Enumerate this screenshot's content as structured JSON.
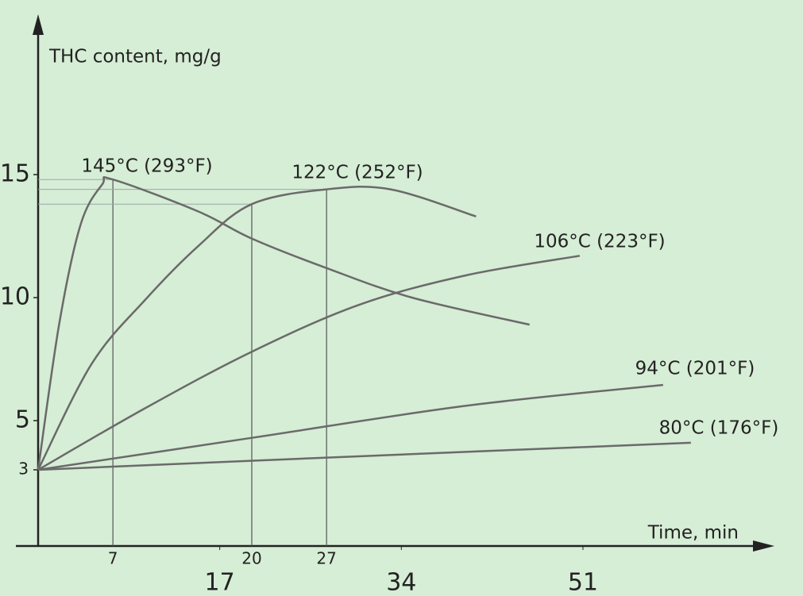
{
  "chart_data": {
    "type": "line",
    "y_label": "THC content, mg/g",
    "x_label": "Time, min",
    "xlim": [
      0,
      68
    ],
    "ylim": [
      0,
      21
    ],
    "yticks": [
      3,
      5,
      10,
      15
    ],
    "xticks": [
      7,
      20,
      27
    ],
    "xticks_secondary": [
      17,
      34,
      51
    ],
    "series": [
      {
        "name": "145°C (293°F)",
        "color": "#6a6a6a",
        "x": [
          0,
          2,
          4,
          6,
          7,
          15,
          20,
          27,
          35,
          46
        ],
        "values": [
          3,
          9,
          13,
          14.6,
          14.8,
          13.5,
          12.4,
          11.2,
          10.0,
          8.9
        ]
      },
      {
        "name": "122°C (252°F)",
        "color": "#6a6a6a",
        "x": [
          0,
          5,
          10,
          15,
          20,
          27,
          33,
          41
        ],
        "values": [
          3,
          7.3,
          9.9,
          12.1,
          13.8,
          14.4,
          14.4,
          13.3
        ]
      },
      {
        "name": "106°C (223°F)",
        "color": "#6a6a6a",
        "x": [
          0,
          10,
          20,
          30,
          40,
          50.7
        ],
        "values": [
          3,
          5.5,
          7.8,
          9.7,
          10.9,
          11.7
        ]
      },
      {
        "name": "94°C (201°F)",
        "color": "#6a6a6a",
        "x": [
          0,
          20,
          40,
          58.5
        ],
        "values": [
          3,
          4.3,
          5.6,
          6.45
        ]
      },
      {
        "name": "80°C (176°F)",
        "color": "#6a6a6a",
        "x": [
          0,
          30,
          61.1
        ],
        "values": [
          3,
          3.55,
          4.1
        ]
      }
    ]
  }
}
